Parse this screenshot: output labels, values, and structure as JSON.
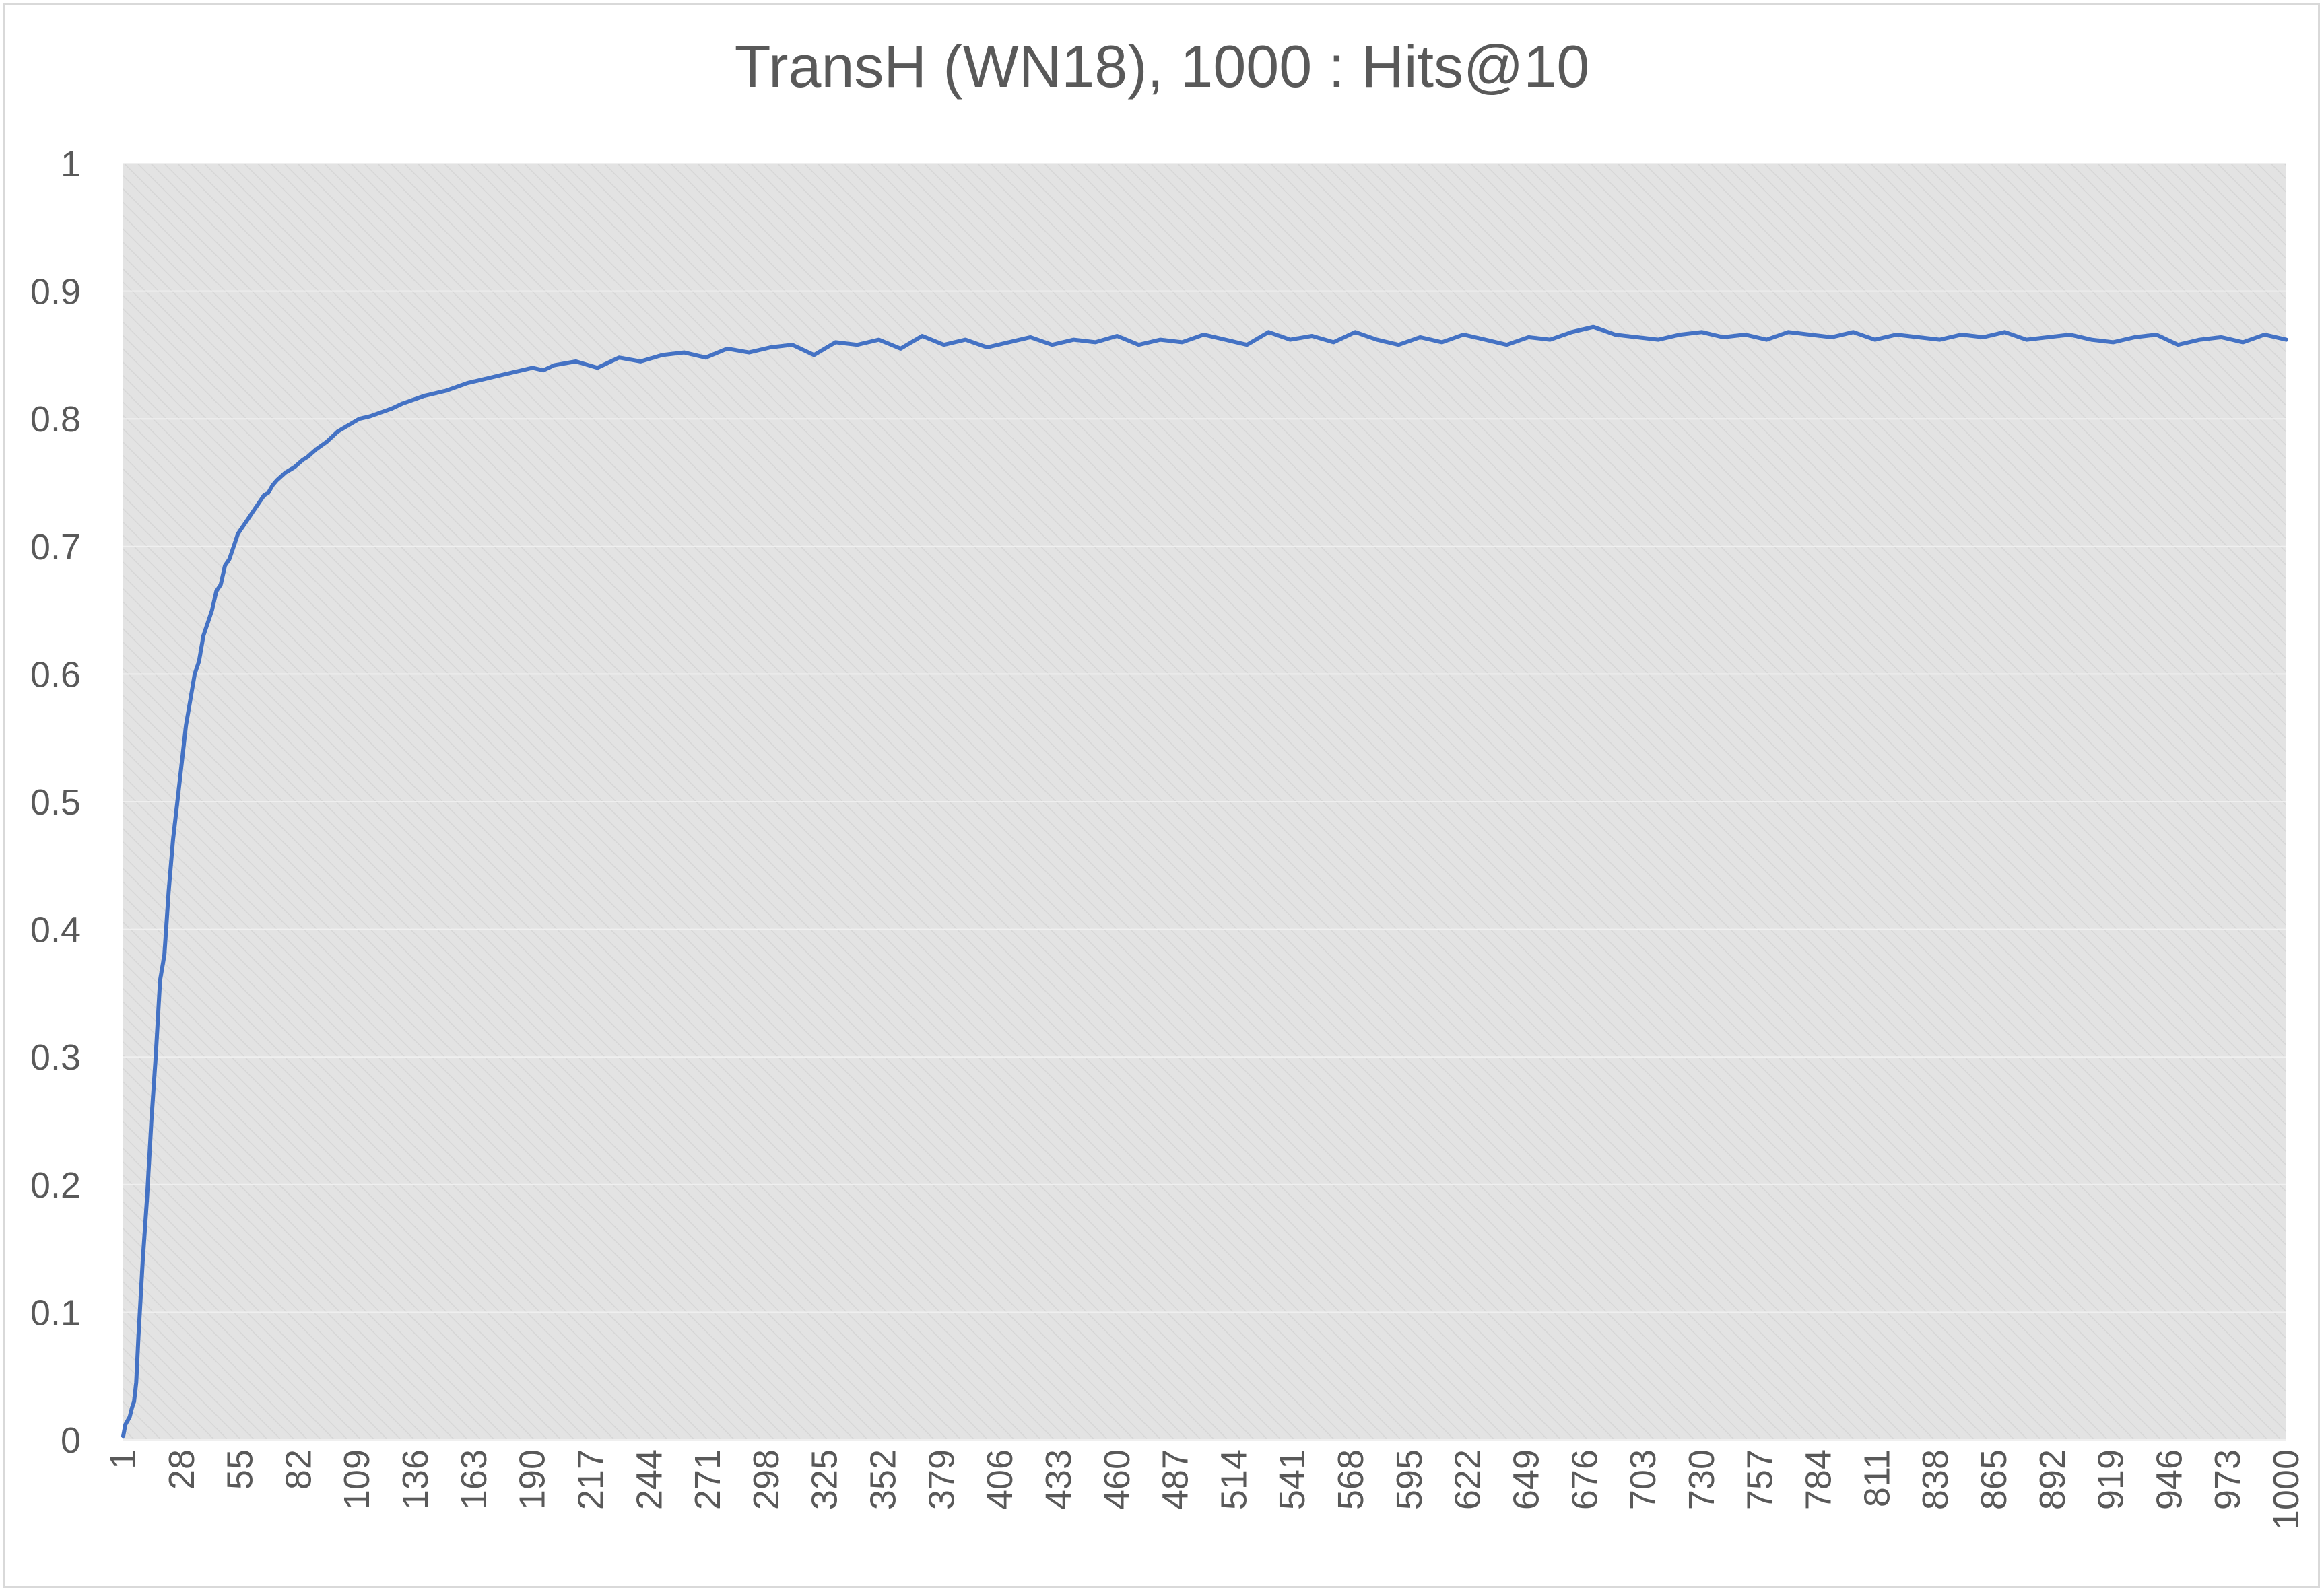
{
  "colors": {
    "line": "#4472c4",
    "plot_background": "#e3e3e3",
    "plot_hatch": "#d6d6d6",
    "gridline": "#efefef",
    "text": "#595959"
  },
  "chart_data": {
    "type": "line",
    "title": "TransH (WN18), 1000 : Hits@10",
    "xlabel": "",
    "ylabel": "",
    "x_range": [
      1,
      1000
    ],
    "ylim": [
      0,
      1
    ],
    "y_ticks": [
      "0",
      "0.1",
      "0.2",
      "0.3",
      "0.4",
      "0.5",
      "0.6",
      "0.7",
      "0.8",
      "0.9",
      "1"
    ],
    "x_tick_labels": [
      "1",
      "28",
      "55",
      "82",
      "109",
      "136",
      "163",
      "190",
      "217",
      "244",
      "271",
      "298",
      "325",
      "352",
      "379",
      "406",
      "433",
      "460",
      "487",
      "514",
      "541",
      "568",
      "595",
      "622",
      "649",
      "676",
      "703",
      "730",
      "757",
      "784",
      "811",
      "838",
      "865",
      "892",
      "919",
      "946",
      "973",
      "1000"
    ],
    "grid": true,
    "legend": "none",
    "series": [
      {
        "x": [
          1,
          2,
          3,
          4,
          5,
          6,
          7,
          8,
          9,
          10,
          12,
          14,
          16,
          18,
          20,
          22,
          24,
          26,
          28,
          30,
          32,
          34,
          36,
          38,
          40,
          42,
          44,
          46,
          48,
          50,
          52,
          54,
          56,
          58,
          60,
          62,
          64,
          66,
          68,
          70,
          72,
          74,
          76,
          78,
          80,
          82,
          84,
          86,
          88,
          90,
          95,
          100,
          105,
          110,
          115,
          120,
          125,
          130,
          135,
          140,
          145,
          150,
          155,
          160,
          165,
          170,
          175,
          180,
          185,
          190,
          195,
          200,
          210,
          220,
          230,
          240,
          250,
          260,
          270,
          280,
          290,
          300,
          310,
          320,
          330,
          340,
          350,
          360,
          370,
          380,
          390,
          400,
          410,
          420,
          430,
          440,
          450,
          460,
          470,
          480,
          490,
          500,
          510,
          520,
          530,
          540,
          550,
          560,
          570,
          580,
          590,
          600,
          610,
          620,
          630,
          640,
          650,
          660,
          670,
          680,
          690,
          700,
          710,
          720,
          730,
          740,
          750,
          760,
          770,
          780,
          790,
          800,
          810,
          820,
          830,
          840,
          850,
          860,
          870,
          880,
          890,
          900,
          910,
          920,
          930,
          940,
          950,
          960,
          970,
          980,
          990,
          1000
        ],
        "values": [
          0.003,
          0.012,
          0.015,
          0.018,
          0.025,
          0.03,
          0.045,
          0.08,
          0.11,
          0.14,
          0.19,
          0.25,
          0.3,
          0.36,
          0.38,
          0.43,
          0.47,
          0.5,
          0.53,
          0.56,
          0.58,
          0.6,
          0.61,
          0.63,
          0.64,
          0.65,
          0.665,
          0.67,
          0.685,
          0.69,
          0.7,
          0.71,
          0.715,
          0.72,
          0.725,
          0.73,
          0.735,
          0.74,
          0.742,
          0.748,
          0.752,
          0.755,
          0.758,
          0.76,
          0.762,
          0.765,
          0.768,
          0.77,
          0.773,
          0.776,
          0.782,
          0.79,
          0.795,
          0.8,
          0.802,
          0.805,
          0.808,
          0.812,
          0.815,
          0.818,
          0.82,
          0.822,
          0.825,
          0.828,
          0.83,
          0.832,
          0.834,
          0.836,
          0.838,
          0.84,
          0.838,
          0.842,
          0.845,
          0.84,
          0.848,
          0.845,
          0.85,
          0.852,
          0.848,
          0.855,
          0.852,
          0.856,
          0.858,
          0.85,
          0.86,
          0.858,
          0.862,
          0.855,
          0.865,
          0.858,
          0.862,
          0.856,
          0.86,
          0.864,
          0.858,
          0.862,
          0.86,
          0.865,
          0.858,
          0.862,
          0.86,
          0.866,
          0.862,
          0.858,
          0.868,
          0.862,
          0.865,
          0.86,
          0.868,
          0.862,
          0.858,
          0.864,
          0.86,
          0.866,
          0.862,
          0.858,
          0.864,
          0.862,
          0.868,
          0.872,
          0.866,
          0.864,
          0.862,
          0.866,
          0.868,
          0.864,
          0.866,
          0.862,
          0.868,
          0.866,
          0.864,
          0.868,
          0.862,
          0.866,
          0.864,
          0.862,
          0.866,
          0.864,
          0.868,
          0.862,
          0.864,
          0.866,
          0.862,
          0.86,
          0.864,
          0.866,
          0.858,
          0.862,
          0.864,
          0.86,
          0.866,
          0.862
        ]
      }
    ]
  }
}
